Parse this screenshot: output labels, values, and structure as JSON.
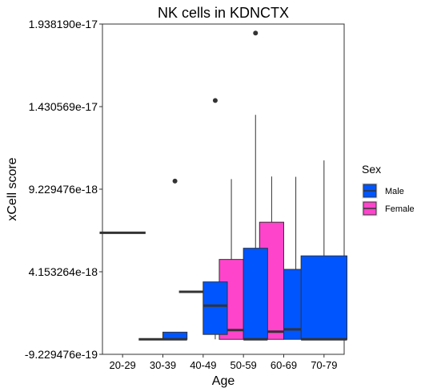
{
  "chart_data": {
    "type": "boxplot",
    "title": "NK cells in KDNCTX",
    "xlabel": "Age",
    "ylabel": "xCell score",
    "categories": [
      "20-29",
      "30-39",
      "40-49",
      "50-59",
      "60-69",
      "70-79"
    ],
    "y_tick_labels": [
      "-9.229476e-19",
      "4.153264e-18",
      "9.229476e-18",
      "1.430569e-17",
      "1.938190e-17"
    ],
    "y_ticks": [
      -9.229476e-19,
      4.153264e-18,
      9.229476e-18,
      1.430569e-17,
      1.93819e-17
    ],
    "ylim": [
      -9.229476e-19,
      1.93819e-17
    ],
    "grid": false,
    "legend": {
      "title": "Sex",
      "position": "right",
      "entries": [
        {
          "label": "Male",
          "color": "#0055FF"
        },
        {
          "label": "Female",
          "color": "#FF44CC"
        }
      ]
    },
    "series": [
      {
        "name": "Female",
        "color": "#FF44CC",
        "boxes": [
          {
            "category": "20-29",
            "whisker_low": 6.55e-18,
            "q1": 6.55e-18,
            "median": 6.55e-18,
            "q3": 6.55e-18,
            "whisker_high": 6.55e-18,
            "outliers": []
          },
          {
            "category": "30-39",
            "whisker_low": 0.0,
            "q1": 0.0,
            "median": 0.0,
            "q3": 0.0,
            "whisker_high": 0.0,
            "outliers": []
          },
          {
            "category": "40-49",
            "whisker_low": 2.92e-18,
            "q1": 2.92e-18,
            "median": 2.92e-18,
            "q3": 2.92e-18,
            "whisker_high": 2.92e-18,
            "outliers": []
          },
          {
            "category": "50-59",
            "whisker_low": 0.0,
            "q1": 0.0,
            "median": 5.7e-19,
            "q3": 4.91e-18,
            "whisker_high": 9.85e-18,
            "outliers": []
          },
          {
            "category": "60-69",
            "whisker_low": 0.0,
            "q1": 0.0,
            "median": 4.7e-19,
            "q3": 7.2e-18,
            "whisker_high": 1.001e-17,
            "outliers": []
          }
        ]
      },
      {
        "name": "Male",
        "color": "#0055FF",
        "boxes": [
          {
            "category": "30-39",
            "whisker_low": 0.0,
            "q1": 0.0,
            "median": 0.0,
            "q3": 4.4e-19,
            "whisker_high": 4.4e-19,
            "outliers": [
              9.73e-18
            ]
          },
          {
            "category": "40-49",
            "whisker_low": 0.0,
            "q1": 3e-19,
            "median": 2.07e-18,
            "q3": 3.53e-18,
            "whisker_high": 3.53e-18,
            "outliers": [
              1.468e-17
            ]
          },
          {
            "category": "50-59",
            "whisker_low": 0.0,
            "q1": 0.0,
            "median": 0.0,
            "q3": 5.6e-18,
            "whisker_high": 1.38e-17,
            "outliers": [
              1.883e-17
            ]
          },
          {
            "category": "60-69",
            "whisker_low": 0.0,
            "q1": 0.0,
            "median": 6.1e-19,
            "q3": 4.3e-18,
            "whisker_high": 9.99e-18,
            "outliers": []
          },
          {
            "category": "70-79",
            "whisker_low": 0.0,
            "q1": 0.0,
            "median": 0.0,
            "q3": 5.13e-18,
            "whisker_high": 1.1e-17,
            "outliers": []
          }
        ]
      }
    ]
  }
}
